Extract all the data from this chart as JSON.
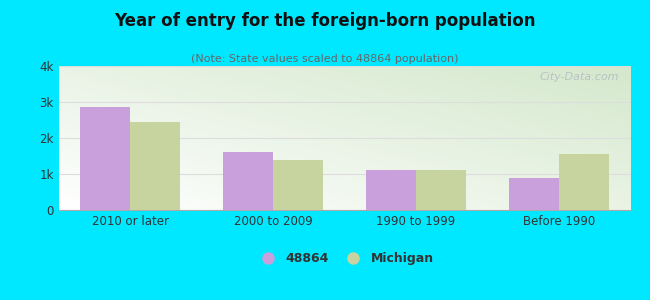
{
  "title": "Year of entry for the foreign-born population",
  "subtitle": "(Note: State values scaled to 48864 population)",
  "categories": [
    "2010 or later",
    "2000 to 2009",
    "1990 to 1999",
    "Before 1990"
  ],
  "values_48864": [
    2850,
    1600,
    1100,
    900
  ],
  "values_michigan": [
    2450,
    1400,
    1100,
    1550
  ],
  "color_48864": "#c9a0dc",
  "color_michigan": "#c8d4a0",
  "background_outer": "#00e8ff",
  "ylim": [
    0,
    4000
  ],
  "yticks": [
    0,
    1000,
    2000,
    3000,
    4000
  ],
  "ytick_labels": [
    "0",
    "1k",
    "2k",
    "3k",
    "4k"
  ],
  "legend_label_1": "48864",
  "legend_label_2": "Michigan",
  "bar_width": 0.35,
  "grid_color": "#dddddd",
  "watermark_text": "City-Data.com"
}
